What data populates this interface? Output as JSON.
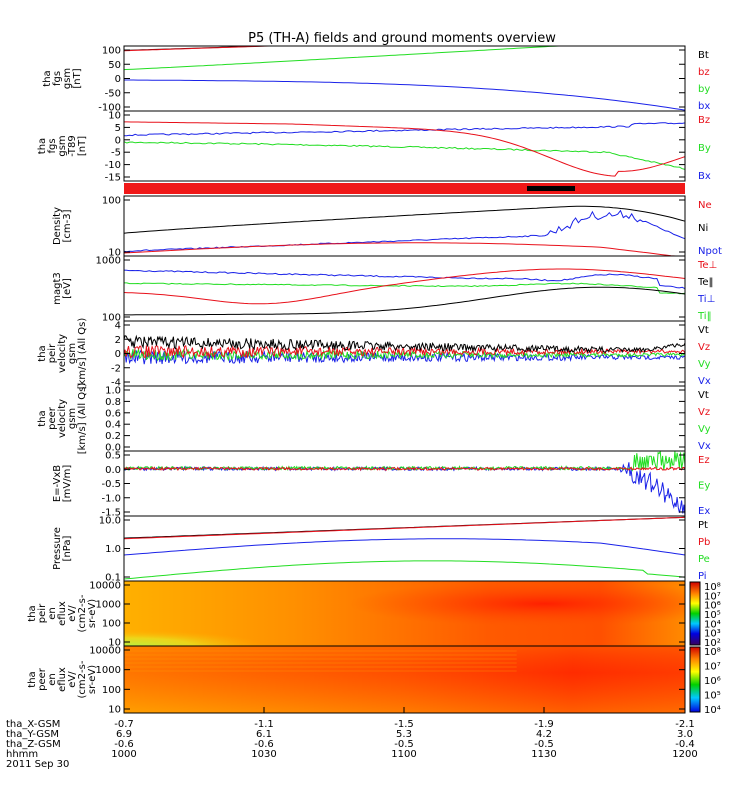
{
  "title": "P5 (TH-A) fields and ground moments overview",
  "colors": {
    "black": "#000000",
    "red": "#e8101a",
    "green": "#22dd22",
    "blue": "#1a22e8",
    "band": "#f01818",
    "bar": "#000000"
  },
  "chart_data": [
    {
      "type": "line",
      "id": "fgs",
      "ylabel": [
        "tha",
        "fgs",
        "gsm",
        "[nT]"
      ],
      "yticks": [
        "100",
        "50",
        "0",
        "-50",
        "-100"
      ],
      "ylim": [
        -110,
        110
      ],
      "legend": [
        {
          "name": "Bt",
          "color": "black"
        },
        {
          "name": "bz",
          "color": "red"
        },
        {
          "name": "by",
          "color": "green"
        },
        {
          "name": "bx",
          "color": "blue"
        }
      ]
    },
    {
      "type": "line",
      "id": "fgs_detrend",
      "ylabel": [
        "tha",
        "fgs",
        "gsm",
        "-T89",
        "[nT]"
      ],
      "yticks": [
        "10",
        "5",
        "0",
        "-5",
        "-10",
        "-15"
      ],
      "ylim": [
        -18,
        11
      ],
      "legend": [
        {
          "name": "Bz",
          "color": "red"
        },
        {
          "name": "By",
          "color": "green"
        },
        {
          "name": "Bx",
          "color": "blue"
        }
      ]
    },
    {
      "type": "line",
      "id": "density",
      "ylabel": [
        "Density",
        "[cm-3]"
      ],
      "yticks": [
        "100",
        "10"
      ],
      "scale": "log",
      "legend": [
        {
          "name": "Ne",
          "color": "red"
        },
        {
          "name": "Ni",
          "color": "black"
        },
        {
          "name": "Npot",
          "color": "blue"
        }
      ]
    },
    {
      "type": "line",
      "id": "temperature",
      "ylabel": [
        "magt3",
        "[eV]"
      ],
      "yticks": [
        "1000",
        "100"
      ],
      "scale": "log",
      "legend": [
        {
          "name": "Te⊥",
          "color": "red"
        },
        {
          "name": "Te‖",
          "color": "black"
        },
        {
          "name": "Ti⊥",
          "color": "blue"
        },
        {
          "name": "Ti‖",
          "color": "green"
        }
      ]
    },
    {
      "type": "line",
      "id": "peir_velocity",
      "ylabel": [
        "tha",
        "peir",
        "velocity",
        "gsm",
        "[km/s] (All Qs)"
      ],
      "yticks": [
        "4",
        "2",
        "0",
        "-2",
        "-4"
      ],
      "ylim": [
        -4,
        4
      ],
      "legend": [
        {
          "name": "Vt",
          "color": "black"
        },
        {
          "name": "Vz",
          "color": "red"
        },
        {
          "name": "Vy",
          "color": "green"
        },
        {
          "name": "Vx",
          "color": "blue"
        }
      ]
    },
    {
      "type": "line",
      "id": "peer_velocity",
      "ylabel": [
        "tha",
        "peer",
        "velocity",
        "gsm",
        "[km/s] (All Qs)"
      ],
      "yticks": [
        "1.0",
        "0.8",
        "0.6",
        "0.4",
        "0.2",
        "0.0"
      ],
      "ylim": [
        0,
        1
      ],
      "legend": [
        {
          "name": "Vt",
          "color": "black"
        },
        {
          "name": "Vz",
          "color": "red"
        },
        {
          "name": "Vy",
          "color": "green"
        },
        {
          "name": "Vx",
          "color": "blue"
        }
      ]
    },
    {
      "type": "line",
      "id": "efield",
      "ylabel": [
        "E=-VxB",
        "[mV/m]"
      ],
      "yticks": [
        "0.5",
        "0.0",
        "-0.5",
        "-1.0",
        "-1.5"
      ],
      "ylim": [
        -1.6,
        0.6
      ],
      "legend": [
        {
          "name": "Ez",
          "color": "red"
        },
        {
          "name": "Ey",
          "color": "green"
        },
        {
          "name": "Ex",
          "color": "blue"
        }
      ]
    },
    {
      "type": "line",
      "id": "pressure",
      "ylabel": [
        "Pressure",
        "[nPa]"
      ],
      "yticks": [
        "10.0",
        "1.0",
        "0.1"
      ],
      "scale": "log",
      "legend": [
        {
          "name": "Pt",
          "color": "black"
        },
        {
          "name": "Pb",
          "color": "red"
        },
        {
          "name": "Pe",
          "color": "green"
        },
        {
          "name": "Pi",
          "color": "blue"
        }
      ]
    },
    {
      "type": "heatmap",
      "id": "peir_eflux",
      "ylabel": [
        "tha",
        "peir",
        "en",
        "eflux",
        "eV/",
        "(cm2-s-",
        "sr-eV)"
      ],
      "yticks": [
        "10000",
        "1000",
        "100",
        "10"
      ],
      "scale": "log",
      "colorbar_ticks": [
        "10⁸",
        "10⁷",
        "10⁶",
        "10⁵",
        "10⁴",
        "10³",
        "10²"
      ]
    },
    {
      "type": "heatmap",
      "id": "peer_eflux",
      "ylabel": [
        "tha",
        "peer",
        "en",
        "eflux",
        "eV/",
        "(cm2-s-",
        "sr-eV)"
      ],
      "yticks": [
        "10000",
        "1000",
        "100",
        "10"
      ],
      "scale": "log",
      "colorbar_ticks": [
        "10⁸",
        "10⁷",
        "10⁶",
        "10⁵",
        "10⁴"
      ]
    }
  ],
  "xaxis": {
    "rows": [
      {
        "label": "tha_X-GSM",
        "values": [
          "-0.7",
          "-1.1",
          "-1.5",
          "-1.9",
          "-2.1"
        ]
      },
      {
        "label": "tha_Y-GSM",
        "values": [
          "6.9",
          "6.1",
          "5.3",
          "4.2",
          "3.0"
        ]
      },
      {
        "label": "tha_Z-GSM",
        "values": [
          "-0.6",
          "-0.6",
          "-0.5",
          "-0.5",
          "-0.4"
        ]
      },
      {
        "label": "hhmm",
        "values": [
          "1000",
          "1030",
          "1100",
          "1130",
          "1200"
        ]
      }
    ],
    "date": "2011 Sep 30"
  }
}
